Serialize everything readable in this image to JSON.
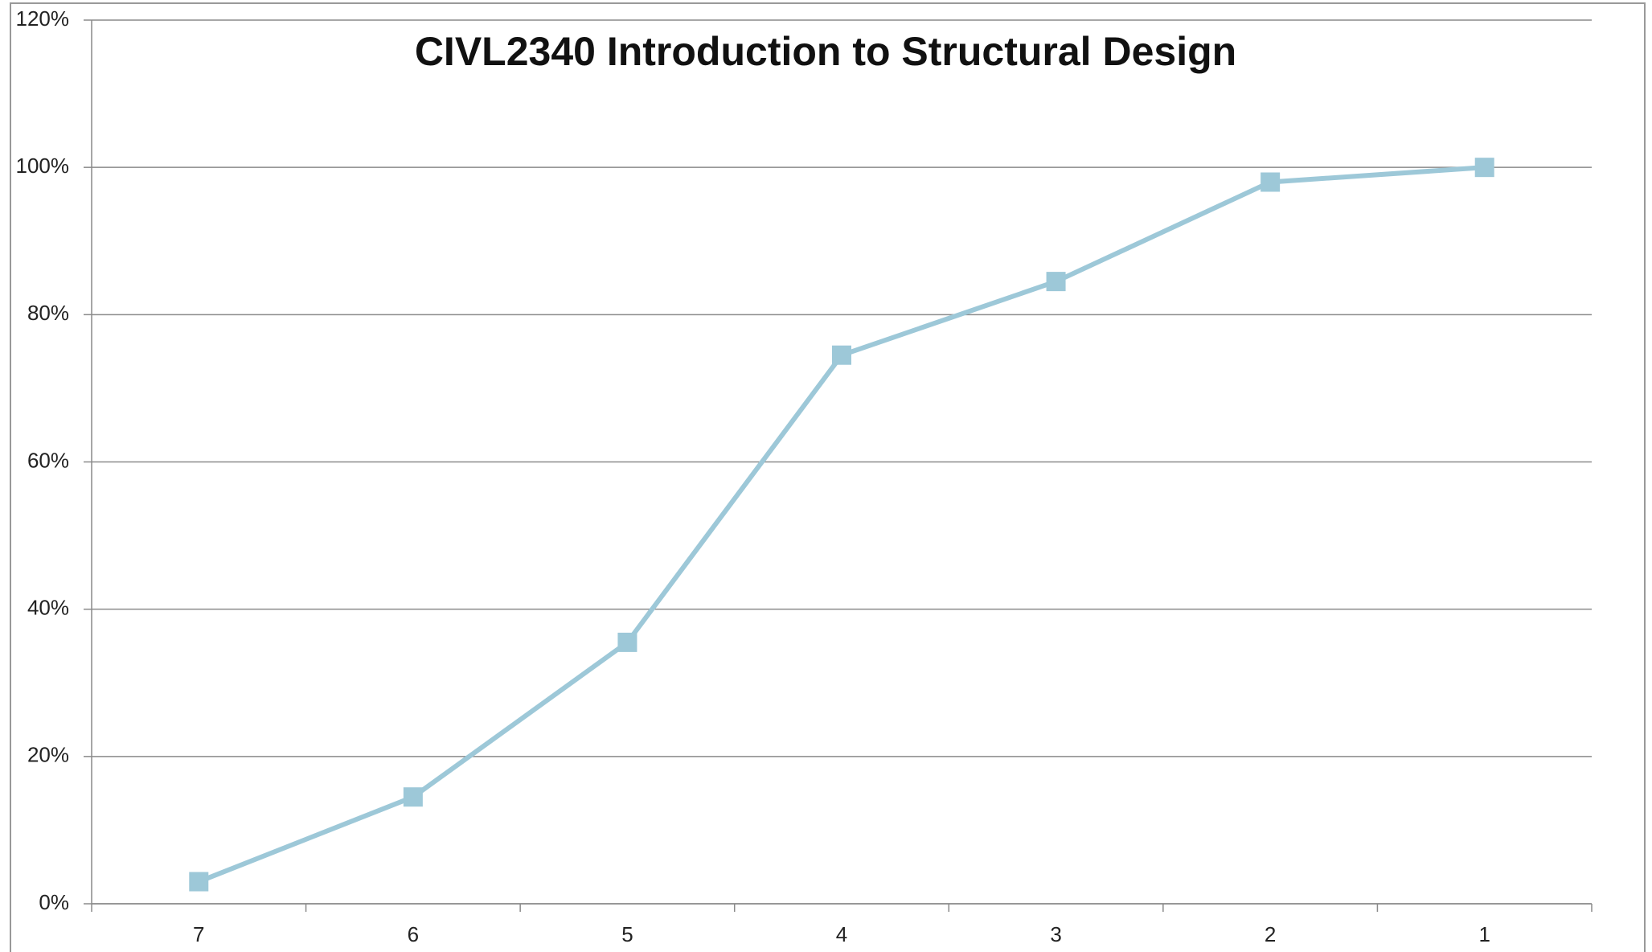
{
  "chart_data": {
    "type": "line",
    "title": "CIVL2340 Introduction to Structural Design",
    "categories": [
      "7",
      "6",
      "5",
      "4",
      "3",
      "2",
      "1"
    ],
    "values": [
      3,
      14.5,
      35.5,
      74.5,
      84.5,
      98,
      100
    ],
    "color": "#9dc8d8",
    "ylim": [
      0,
      120
    ],
    "yticks": [
      {
        "value": 0,
        "label": "0%"
      },
      {
        "value": 20,
        "label": "20%"
      },
      {
        "value": 40,
        "label": "40%"
      },
      {
        "value": 60,
        "label": "60%"
      },
      {
        "value": 80,
        "label": "80%"
      },
      {
        "value": 100,
        "label": "100%"
      },
      {
        "value": 120,
        "label": "120%"
      }
    ],
    "grid": true
  }
}
